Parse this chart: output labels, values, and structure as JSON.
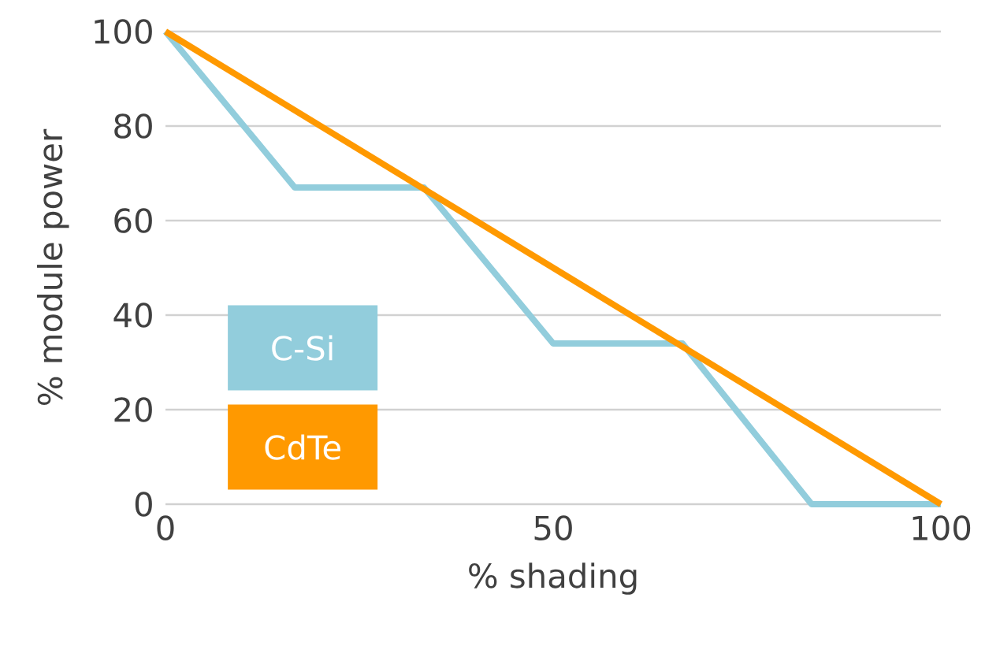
{
  "chart_data": {
    "type": "line",
    "xlabel": "% shading",
    "ylabel": "%  module power",
    "xlim": [
      0,
      100
    ],
    "ylim": [
      0,
      100
    ],
    "xticks": [
      0,
      50,
      100
    ],
    "yticks": [
      0,
      20,
      40,
      60,
      80,
      100
    ],
    "grid": "y",
    "legend": "bottom left",
    "marker": "none",
    "line_style": "solid",
    "series": [
      {
        "name": "C-Si",
        "color": "#92cddc",
        "x": [
          0,
          16.67,
          33.33,
          50,
          66.67,
          83.33,
          100
        ],
        "values": [
          100,
          67,
          67,
          34,
          34,
          0,
          0
        ]
      },
      {
        "name": "CdTe",
        "color": "#ff9900",
        "x": [
          0,
          100
        ],
        "values": [
          100,
          0
        ]
      }
    ]
  }
}
